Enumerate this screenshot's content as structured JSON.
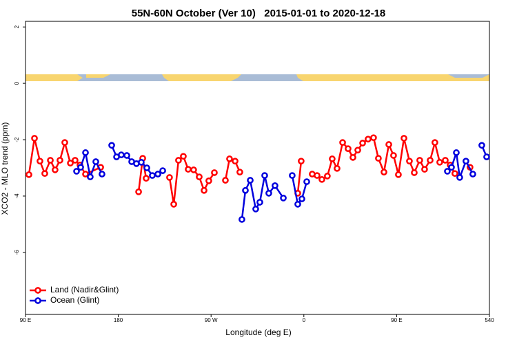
{
  "chart_data": {
    "type": "line",
    "title": "55N-60N October (Ver 10)   2015-01-01 to 2020-12-18",
    "xlabel": "Longitude (deg E)",
    "ylabel": "XCO2 - MLO trend (ppm)",
    "xlim": [
      90,
      540
    ],
    "xticks": [
      {
        "value": 90,
        "label": "90 E"
      },
      180,
      {
        "value": 270,
        "label": "90 W"
      },
      {
        "value": 360,
        "label": "0"
      },
      {
        "value": 450,
        "label": "90 E"
      },
      540
    ],
    "ylim": [
      -8.2,
      2.2
    ],
    "yticks": [
      2,
      0,
      -2,
      -4,
      -6
    ],
    "legend": "bottom-left",
    "series": [
      {
        "name": "Land (Nadir&Glint)",
        "color": "#ff0000",
        "x": [
          93.3,
          98.7,
          104.0,
          108.7,
          114.1,
          118.7,
          123.4,
          128.1,
          133.5,
          138.1,
          142.8,
          148.2,
          162.9,
          null,
          199.7,
          203.7,
          207.0,
          null,
          229.7,
          233.8,
          238.4,
          243.1,
          247.8,
          253.1,
          258.5,
          263.2,
          267.8,
          273.2,
          null,
          283.9,
          287.9,
          293.3,
          297.9,
          null,
          354.1,
          357.4,
          null,
          368.1,
          372.8,
          377.5,
          382.8,
          387.5,
          392.2,
          397.6,
          402.9,
          407.6,
          412.3,
          417.0,
          422.3,
          427.6,
          432.3,
          437.7,
          442.4,
          447.0,
          451.7,
          457.1,
          462.4,
          467.1,
          472.4,
          477.1,
          482.5,
          487.1,
          491.8,
          497.2,
          501.9,
          506.5,
          null,
          521.2
        ],
        "values": [
          -3.24,
          -1.95,
          -2.76,
          -3.2,
          -2.73,
          -3.07,
          -2.73,
          -2.1,
          -2.83,
          -2.73,
          -2.9,
          -3.22,
          -2.98,
          null,
          -3.85,
          -2.66,
          -3.37,
          null,
          -3.34,
          -4.29,
          -2.73,
          -2.59,
          -3.05,
          -3.07,
          -3.32,
          -3.8,
          -3.46,
          -3.17,
          null,
          -3.44,
          -2.68,
          -2.76,
          -3.15,
          null,
          -3.9,
          -2.76,
          null,
          -3.22,
          -3.27,
          -3.41,
          -3.29,
          -2.68,
          -3.02,
          -2.1,
          -2.32,
          -2.63,
          -2.37,
          -2.12,
          -1.98,
          -1.93,
          -2.66,
          -3.15,
          -2.17,
          -2.56,
          -3.24,
          -1.95,
          -2.76,
          -3.17,
          -2.73,
          -3.05,
          -2.73,
          -2.1,
          -2.8,
          -2.73,
          -2.9,
          -3.2,
          null,
          -2.98
        ]
      },
      {
        "name": "Ocean (Glint)",
        "color": "#0000dd",
        "x": [
          139.5,
          143.5,
          148.2,
          152.8,
          158.2,
          164.2,
          null,
          173.6,
          178.3,
          182.9,
          188.3,
          193.0,
          197.6,
          202.3,
          207.7,
          213.0,
          218.4,
          223.1,
          null,
          299.9,
          303.3,
          308.0,
          313.3,
          317.3,
          322.0,
          326.0,
          332.0,
          340.1,
          null,
          348.7,
          354.1,
          358.1,
          362.8,
          null,
          499.2,
          503.2,
          507.9,
          511.2,
          517.2,
          523.9,
          null,
          532.6,
          537.3
        ],
        "values": [
          -3.12,
          -2.98,
          -2.46,
          -3.32,
          -2.78,
          -3.22,
          null,
          -2.2,
          -2.61,
          -2.54,
          -2.56,
          -2.78,
          -2.85,
          -2.8,
          -3.0,
          -3.27,
          -3.22,
          -3.1,
          null,
          -4.83,
          -3.8,
          -3.44,
          -4.46,
          -4.22,
          -3.27,
          -3.9,
          -3.63,
          -4.07,
          null,
          -3.27,
          -4.29,
          -4.1,
          -3.49,
          null,
          -3.12,
          -2.98,
          -2.46,
          -3.34,
          -2.76,
          -3.22,
          null,
          -2.2,
          -2.61
        ]
      }
    ]
  }
}
